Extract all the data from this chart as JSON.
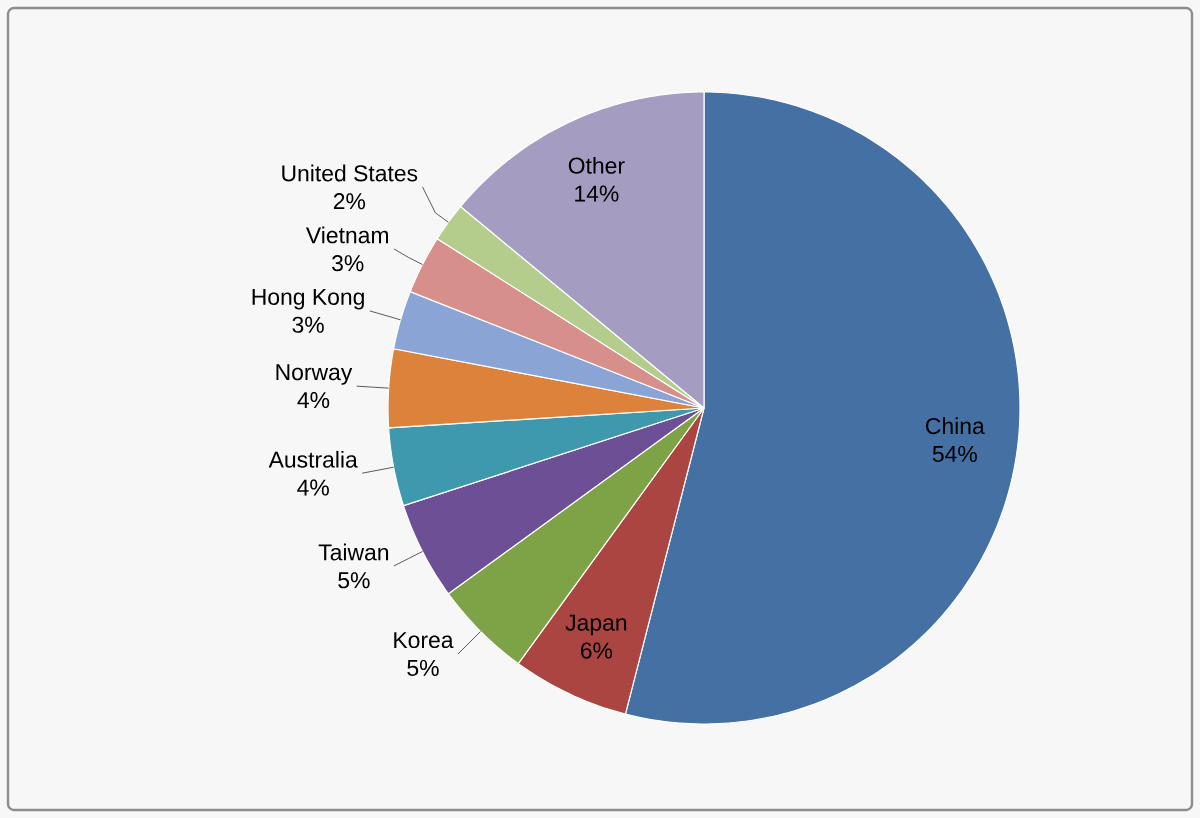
{
  "chart_data": {
    "type": "pie",
    "categories": [
      "China",
      "Japan",
      "Korea",
      "Taiwan",
      "Australia",
      "Norway",
      "Hong Kong",
      "Vietnam",
      "United States",
      "Other"
    ],
    "values": [
      54,
      6,
      5,
      5,
      4,
      4,
      3,
      3,
      2,
      14
    ],
    "value_labels": [
      "54%",
      "6%",
      "5%",
      "5%",
      "4%",
      "4%",
      "3%",
      "3%",
      "2%",
      "14%"
    ],
    "colors": [
      "#4470a3",
      "#aa4542",
      "#7ea346",
      "#6c4f95",
      "#3e98ae",
      "#dc823a",
      "#8aa5d5",
      "#d68f8a",
      "#b5cd8c",
      "#a49dc1"
    ]
  }
}
